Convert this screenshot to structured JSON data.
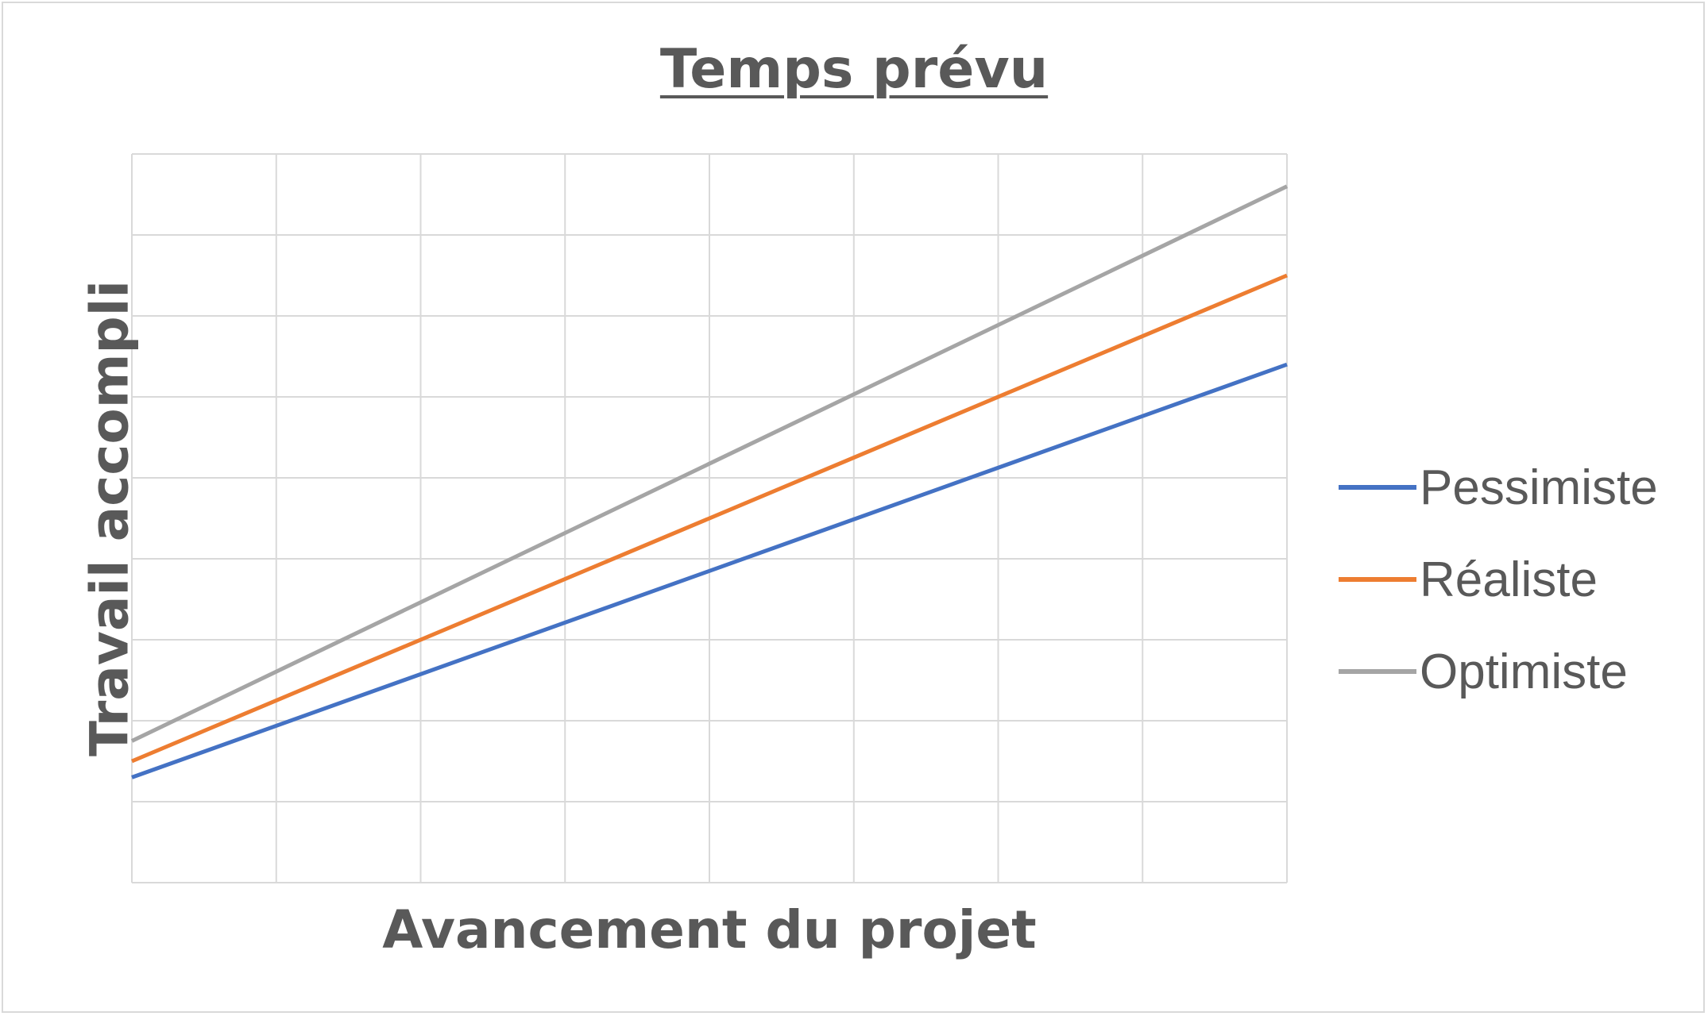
{
  "chart_data": {
    "type": "line",
    "title": "Temps prévu",
    "xlabel": "Avancement du projet",
    "ylabel": "Travail accompli",
    "x": [
      0,
      8
    ],
    "xlim": [
      0,
      8
    ],
    "ylim": [
      0,
      9
    ],
    "grid": true,
    "legend_position": "right",
    "series": [
      {
        "name": "Pessimiste",
        "color": "#4472C4",
        "values": [
          1.3,
          6.4
        ]
      },
      {
        "name": "Réaliste",
        "color": "#ED7D31",
        "values": [
          1.5,
          7.5
        ]
      },
      {
        "name": "Optimiste",
        "color": "#A5A5A5",
        "values": [
          1.75,
          8.6
        ]
      }
    ]
  }
}
